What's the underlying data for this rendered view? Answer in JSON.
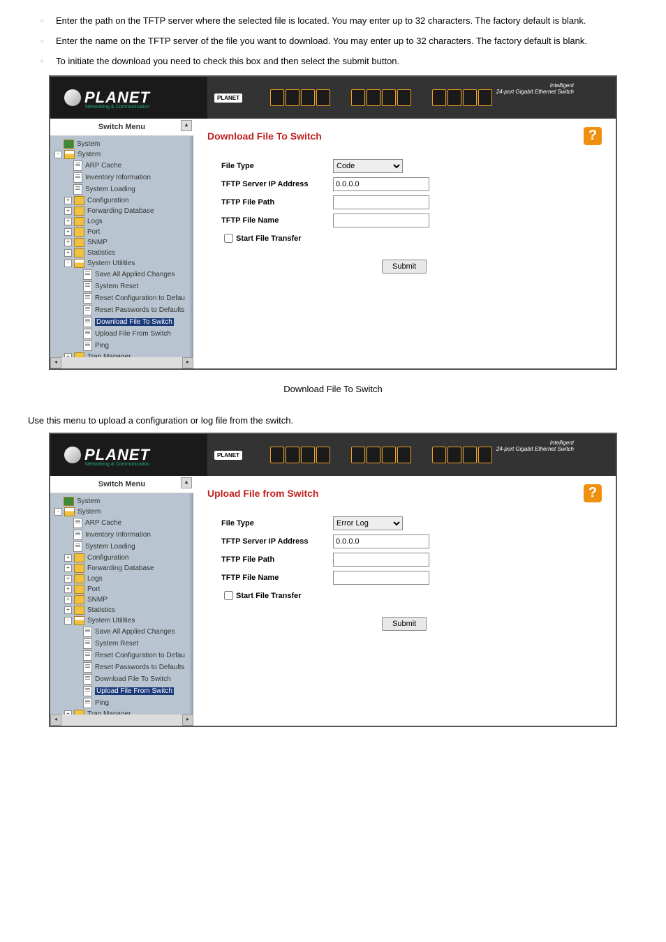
{
  "bullets": [
    {
      "pre": "",
      "text": "Enter the path on the TFTP server where the selected file is located. You may enter up to 32 characters. The factory default is blank."
    },
    {
      "pre": "",
      "text": "Enter the name on the TFTP server of the file you want to download. You may enter up to 32 characters. The factory default is blank."
    },
    {
      "pre": "",
      "text": "To initiate the download you need to check this box and then select the submit button."
    }
  ],
  "logo": {
    "brand": "PLANET",
    "sub": "Networking & Communication"
  },
  "banner": {
    "help": "Help",
    "label": "24-port Gigabit Ethernet Switch",
    "model": "Intelligent",
    "small": "PLANET"
  },
  "menu_header": "Switch Menu",
  "tree": [
    {
      "lvl": 1,
      "icon": "folder-green",
      "label": "System",
      "exp": ""
    },
    {
      "lvl": 1,
      "icon": "folder-open",
      "label": "System",
      "exp": "-"
    },
    {
      "lvl": 2,
      "icon": "doc",
      "label": "ARP Cache"
    },
    {
      "lvl": 2,
      "icon": "doc",
      "label": "Inventory Information"
    },
    {
      "lvl": 2,
      "icon": "doc",
      "label": "System Loading"
    },
    {
      "lvl": 2,
      "icon": "folder",
      "label": "Configuration",
      "exp": "+"
    },
    {
      "lvl": 2,
      "icon": "folder",
      "label": "Forwarding Database",
      "exp": "+"
    },
    {
      "lvl": 2,
      "icon": "folder",
      "label": "Logs",
      "exp": "+"
    },
    {
      "lvl": 2,
      "icon": "folder",
      "label": "Port",
      "exp": "+"
    },
    {
      "lvl": 2,
      "icon": "folder",
      "label": "SNMP",
      "exp": "+"
    },
    {
      "lvl": 2,
      "icon": "folder",
      "label": "Statistics",
      "exp": "+"
    },
    {
      "lvl": 2,
      "icon": "folder-open",
      "label": "System Utilities",
      "exp": "-"
    },
    {
      "lvl": 3,
      "icon": "doc",
      "label": "Save All Applied Changes"
    },
    {
      "lvl": 3,
      "icon": "doc",
      "label": "System Reset"
    },
    {
      "lvl": 3,
      "icon": "doc",
      "label": "Reset Configuration to Defau"
    },
    {
      "lvl": 3,
      "icon": "doc",
      "label": "Reset Passwords to Defaults"
    },
    {
      "lvl": 3,
      "icon": "doc",
      "label": "Download File To Switch",
      "sel": true
    },
    {
      "lvl": 3,
      "icon": "doc",
      "label": "Upload File From Switch"
    },
    {
      "lvl": 3,
      "icon": "doc",
      "label": "Ping"
    },
    {
      "lvl": 2,
      "icon": "folder",
      "label": "Trap Manager",
      "exp": "+"
    }
  ],
  "tree2": [
    {
      "lvl": 1,
      "icon": "folder-green",
      "label": "System",
      "exp": ""
    },
    {
      "lvl": 1,
      "icon": "folder-open",
      "label": "System",
      "exp": "-"
    },
    {
      "lvl": 2,
      "icon": "doc",
      "label": "ARP Cache"
    },
    {
      "lvl": 2,
      "icon": "doc",
      "label": "Inventory Information"
    },
    {
      "lvl": 2,
      "icon": "doc",
      "label": "System Loading"
    },
    {
      "lvl": 2,
      "icon": "folder",
      "label": "Configuration",
      "exp": "+"
    },
    {
      "lvl": 2,
      "icon": "folder",
      "label": "Forwarding Database",
      "exp": "+"
    },
    {
      "lvl": 2,
      "icon": "folder",
      "label": "Logs",
      "exp": "+"
    },
    {
      "lvl": 2,
      "icon": "folder",
      "label": "Port",
      "exp": "+"
    },
    {
      "lvl": 2,
      "icon": "folder",
      "label": "SNMP",
      "exp": "+"
    },
    {
      "lvl": 2,
      "icon": "folder",
      "label": "Statistics",
      "exp": "+"
    },
    {
      "lvl": 2,
      "icon": "folder-open",
      "label": "System Utilities",
      "exp": "-"
    },
    {
      "lvl": 3,
      "icon": "doc",
      "label": "Save All Applied Changes"
    },
    {
      "lvl": 3,
      "icon": "doc",
      "label": "System Reset"
    },
    {
      "lvl": 3,
      "icon": "doc",
      "label": "Reset Configuration to Defau"
    },
    {
      "lvl": 3,
      "icon": "doc",
      "label": "Reset Passwords to Defaults"
    },
    {
      "lvl": 3,
      "icon": "doc",
      "label": "Download File To Switch"
    },
    {
      "lvl": 3,
      "icon": "doc",
      "label": "Upload File From Switch",
      "sel": true
    },
    {
      "lvl": 3,
      "icon": "doc",
      "label": "Ping"
    },
    {
      "lvl": 2,
      "icon": "folder",
      "label": "Trap Manager",
      "exp": "+"
    }
  ],
  "form1": {
    "title": "Download File To Switch",
    "file_type_label": "File Type",
    "file_type_value": "Code",
    "ip_label": "TFTP Server IP Address",
    "ip_value": "0.0.0.0",
    "path_label": "TFTP File Path",
    "path_value": "",
    "name_label": "TFTP File Name",
    "name_value": "",
    "transfer_label": "Start File Transfer",
    "submit": "Submit"
  },
  "caption1": "Download File To Switch",
  "mid_text": "Use this menu to upload a configuration or log file from the switch.",
  "form2": {
    "title": "Upload File from Switch",
    "file_type_label": "File Type",
    "file_type_value": "Error Log",
    "ip_label": "TFTP Server IP Address",
    "ip_value": "0.0.0.0",
    "path_label": "TFTP File Path",
    "path_value": "",
    "name_label": "TFTP File Name",
    "name_value": "",
    "transfer_label": "Start File Transfer",
    "submit": "Submit"
  }
}
